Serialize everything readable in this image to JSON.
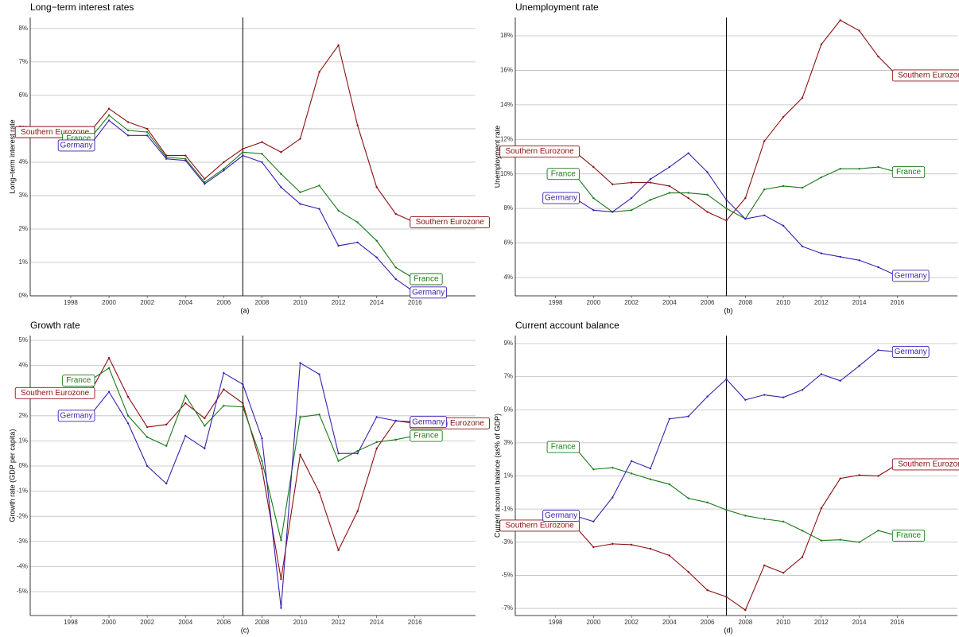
{
  "chart_data": [
    {
      "type": "line",
      "title": "Long−term interest rates",
      "ylabel": "Long−term interest rate",
      "caption": "(a)",
      "x": [
        1999,
        2000,
        2001,
        2002,
        2003,
        2004,
        2005,
        2006,
        2007,
        2008,
        2009,
        2010,
        2011,
        2012,
        2013,
        2014,
        2015,
        2016
      ],
      "xlim": [
        1995.88,
        2019.17
      ],
      "xticks": [
        1998,
        2000,
        2002,
        2004,
        2006,
        2008,
        2010,
        2012,
        2014,
        2016
      ],
      "ylim": [
        0,
        8.33
      ],
      "yticks": [
        {
          "value": 0,
          "label": "0%"
        },
        {
          "value": 1,
          "label": "1%"
        },
        {
          "value": 2,
          "label": "2%"
        },
        {
          "value": 3,
          "label": "3%"
        },
        {
          "value": 4,
          "label": "4%"
        },
        {
          "value": 5,
          "label": "5%"
        },
        {
          "value": 6,
          "label": "6%"
        },
        {
          "value": 7,
          "label": "7%"
        },
        {
          "value": 8,
          "label": "8%"
        }
      ],
      "vline": 2007,
      "grid": true,
      "series": [
        {
          "name": "Southern Eurozone",
          "color": "#8b1010",
          "values": [
            4.9,
            5.6,
            5.2,
            5.0,
            4.2,
            4.2,
            3.5,
            4.0,
            4.4,
            4.6,
            4.3,
            4.7,
            6.7,
            7.5,
            5.1,
            3.25,
            2.45,
            2.2
          ]
        },
        {
          "name": "France",
          "color": "#1a7a1a",
          "values": [
            4.7,
            5.4,
            4.95,
            4.9,
            4.15,
            4.1,
            3.4,
            3.8,
            4.3,
            4.25,
            3.65,
            3.1,
            3.3,
            2.55,
            2.2,
            1.65,
            0.85,
            0.5
          ]
        },
        {
          "name": "Germany",
          "color": "#3b1fb0",
          "values": [
            4.5,
            5.25,
            4.8,
            4.8,
            4.1,
            4.05,
            3.35,
            3.75,
            4.2,
            4.0,
            3.25,
            2.75,
            2.6,
            1.5,
            1.6,
            1.15,
            0.5,
            0.1
          ]
        }
      ]
    },
    {
      "type": "line",
      "title": "Unemployment rate",
      "ylabel": "Unemployment rate",
      "caption": "(b)",
      "x": [
        1999,
        2000,
        2001,
        2002,
        2003,
        2004,
        2005,
        2006,
        2007,
        2008,
        2009,
        2010,
        2011,
        2012,
        2013,
        2014,
        2015,
        2016
      ],
      "xlim": [
        1995.88,
        2019.17
      ],
      "xticks": [
        1998,
        2000,
        2002,
        2004,
        2006,
        2008,
        2010,
        2012,
        2014,
        2016
      ],
      "ylim": [
        2.94,
        19.06
      ],
      "yticks": [
        {
          "value": 4,
          "label": "4%"
        },
        {
          "value": 6,
          "label": "6%"
        },
        {
          "value": 8,
          "label": "8%"
        },
        {
          "value": 10,
          "label": "10%"
        },
        {
          "value": 12,
          "label": "12%"
        },
        {
          "value": 14,
          "label": "14%"
        },
        {
          "value": 16,
          "label": "16%"
        },
        {
          "value": 18,
          "label": "18%"
        }
      ],
      "vline": 2007,
      "grid": true,
      "series": [
        {
          "name": "Southern Eurozone",
          "color": "#8b1010",
          "values": [
            11.3,
            10.4,
            9.4,
            9.5,
            9.5,
            9.3,
            8.6,
            7.8,
            7.3,
            8.6,
            11.9,
            13.3,
            14.4,
            17.5,
            18.9,
            18.3,
            16.8,
            15.7
          ]
        },
        {
          "name": "France",
          "color": "#1a7a1a",
          "values": [
            10.0,
            8.6,
            7.8,
            7.9,
            8.5,
            8.9,
            8.9,
            8.8,
            8.0,
            7.4,
            9.1,
            9.3,
            9.2,
            9.8,
            10.3,
            10.3,
            10.4,
            10.1
          ]
        },
        {
          "name": "Germany",
          "color": "#3b1fb0",
          "values": [
            8.6,
            7.9,
            7.8,
            8.6,
            9.7,
            10.4,
            11.2,
            10.1,
            8.5,
            7.4,
            7.6,
            7.0,
            5.8,
            5.4,
            5.2,
            5.0,
            4.6,
            4.1
          ]
        }
      ]
    },
    {
      "type": "line",
      "title": "Growth rate",
      "ylabel": "Growth rate (GDP per capita)",
      "caption": "(c)",
      "x": [
        1999,
        2000,
        2001,
        2002,
        2003,
        2004,
        2005,
        2006,
        2007,
        2008,
        2009,
        2010,
        2011,
        2012,
        2013,
        2014,
        2015,
        2016
      ],
      "xlim": [
        1995.88,
        2019.17
      ],
      "xticks": [
        1998,
        2000,
        2002,
        2004,
        2006,
        2008,
        2010,
        2012,
        2014,
        2016
      ],
      "ylim": [
        -5.95,
        5.19
      ],
      "yticks": [
        {
          "value": -5,
          "label": "-5%"
        },
        {
          "value": -4,
          "label": "-4%"
        },
        {
          "value": -3,
          "label": "-3%"
        },
        {
          "value": -2,
          "label": "-2%"
        },
        {
          "value": -1,
          "label": "-1%"
        },
        {
          "value": 0,
          "label": "0%"
        },
        {
          "value": 1,
          "label": "1%"
        },
        {
          "value": 2,
          "label": "2%"
        },
        {
          "value": 3,
          "label": "3%"
        },
        {
          "value": 4,
          "label": "4%"
        },
        {
          "value": 5,
          "label": "5%"
        }
      ],
      "vline": 2007,
      "grid": true,
      "series": [
        {
          "name": "Southern Eurozone",
          "color": "#8b1010",
          "values": [
            2.9,
            4.3,
            2.75,
            1.55,
            1.65,
            2.5,
            1.9,
            3.05,
            2.5,
            -0.1,
            -4.5,
            0.45,
            -1.05,
            -3.35,
            -1.8,
            0.7,
            1.8,
            1.7
          ]
        },
        {
          "name": "France",
          "color": "#1a7a1a",
          "values": [
            3.4,
            3.9,
            2.0,
            1.15,
            0.8,
            2.8,
            1.6,
            2.4,
            2.35,
            0.2,
            -2.95,
            1.95,
            2.05,
            0.2,
            0.6,
            0.95,
            1.05,
            1.2
          ]
        },
        {
          "name": "Germany",
          "color": "#3b1fb0",
          "values": [
            2.0,
            2.95,
            1.7,
            0.0,
            -0.7,
            1.2,
            0.7,
            3.7,
            3.25,
            1.1,
            -5.65,
            4.1,
            3.65,
            0.5,
            0.5,
            1.95,
            1.8,
            1.75
          ]
        }
      ]
    },
    {
      "type": "line",
      "title": "Current account balance",
      "ylabel": "Current account balance (as% of GDP)",
      "caption": "(d)",
      "x": [
        1999,
        2000,
        2001,
        2002,
        2003,
        2004,
        2005,
        2006,
        2007,
        2008,
        2009,
        2010,
        2011,
        2012,
        2013,
        2014,
        2015,
        2016
      ],
      "xlim": [
        1995.88,
        2019.17
      ],
      "xticks": [
        1998,
        2000,
        2002,
        2004,
        2006,
        2008,
        2010,
        2012,
        2014,
        2016
      ],
      "ylim": [
        -7.43,
        9.48
      ],
      "yticks": [
        {
          "value": -7,
          "label": "-7%"
        },
        {
          "value": -5,
          "label": "-5%"
        },
        {
          "value": -3,
          "label": "-3%"
        },
        {
          "value": -1,
          "label": "-1%"
        },
        {
          "value": 1,
          "label": "1%"
        },
        {
          "value": 3,
          "label": "3%"
        },
        {
          "value": 5,
          "label": "5%"
        },
        {
          "value": 7,
          "label": "7%"
        },
        {
          "value": 9,
          "label": "9%"
        }
      ],
      "vline": 2007,
      "grid": true,
      "series": [
        {
          "name": "Southern Eurozone",
          "color": "#8b1010",
          "values": [
            -2.0,
            -3.3,
            -3.1,
            -3.15,
            -3.4,
            -3.8,
            -4.8,
            -5.9,
            -6.3,
            -7.1,
            -4.4,
            -4.85,
            -3.9,
            -0.95,
            0.85,
            1.05,
            1.0,
            1.7
          ]
        },
        {
          "name": "France",
          "color": "#1a7a1a",
          "values": [
            2.75,
            1.4,
            1.5,
            1.15,
            0.8,
            0.5,
            -0.35,
            -0.6,
            -1.05,
            -1.4,
            -1.6,
            -1.75,
            -2.3,
            -2.9,
            -2.85,
            -3.0,
            -2.3,
            -2.6
          ]
        },
        {
          "name": "Germany",
          "color": "#3b1fb0",
          "values": [
            -1.4,
            -1.75,
            -0.3,
            1.9,
            1.45,
            4.45,
            4.6,
            5.8,
            6.85,
            5.6,
            5.9,
            5.75,
            6.2,
            7.15,
            6.75,
            7.65,
            8.6,
            8.5
          ]
        }
      ]
    }
  ]
}
